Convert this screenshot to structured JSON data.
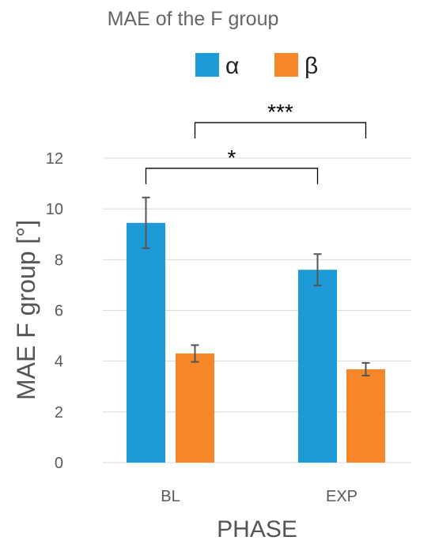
{
  "chart_data": {
    "type": "bar",
    "title": "MAE of the  F group",
    "xlabel": "PHASE",
    "ylabel": "MAE F group [°]",
    "categories": [
      "BL",
      "EXP"
    ],
    "series": [
      {
        "name": "α",
        "color": "#1E9AD6",
        "values": [
          9.45,
          7.6
        ],
        "errors": [
          1.0,
          0.62
        ]
      },
      {
        "name": "β",
        "color": "#F6862A",
        "values": [
          4.3,
          3.68
        ],
        "errors": [
          0.33,
          0.25
        ]
      }
    ],
    "bar_order": [
      [
        "α",
        0
      ],
      [
        "β",
        0
      ],
      [
        "α",
        1
      ],
      [
        "β",
        1
      ]
    ],
    "ylim": [
      0,
      12
    ],
    "yticks": [
      "0",
      "2",
      "4",
      "6",
      "8",
      "10",
      "12"
    ],
    "grid": true,
    "legend_position": "top",
    "significance": [
      {
        "label": "*",
        "from_bar": 0,
        "to_bar": 2
      },
      {
        "label": "***",
        "from_bar": 1,
        "to_bar": 3
      }
    ]
  }
}
